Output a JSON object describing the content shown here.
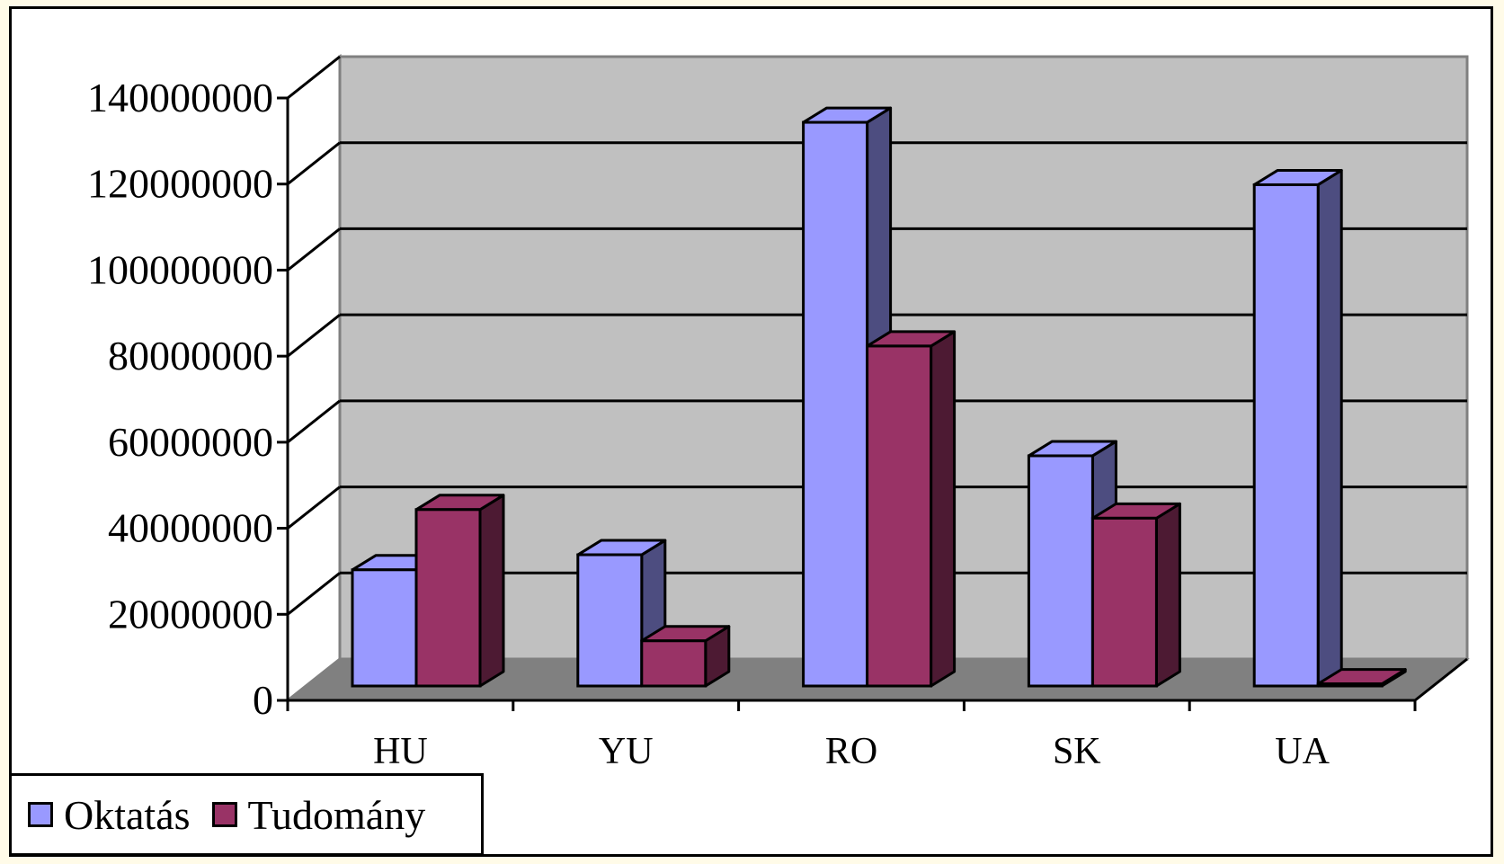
{
  "chart_data": {
    "type": "bar",
    "categories": [
      "HU",
      "YU",
      "RO",
      "SK",
      "UA"
    ],
    "series": [
      {
        "name": "Oktatás",
        "values": [
          27000000,
          30500000,
          131000000,
          53500000,
          116500000
        ],
        "color": "#9999ff",
        "side_color": "#4d4d80"
      },
      {
        "name": "Tudomány",
        "values": [
          41000000,
          10500000,
          79000000,
          39000000,
          500000
        ],
        "color": "#993366",
        "side_color": "#4d1a33"
      }
    ],
    "yticks": [
      "0",
      "20000000",
      "40000000",
      "60000000",
      "80000000",
      "100000000",
      "120000000",
      "140000000"
    ],
    "ylim": [
      0,
      140000000
    ],
    "grid": true,
    "style": "3d-clustered-column",
    "wall_color": "#c0c0c0",
    "floor_color": "#808080",
    "legend_position": "bottom-left"
  }
}
